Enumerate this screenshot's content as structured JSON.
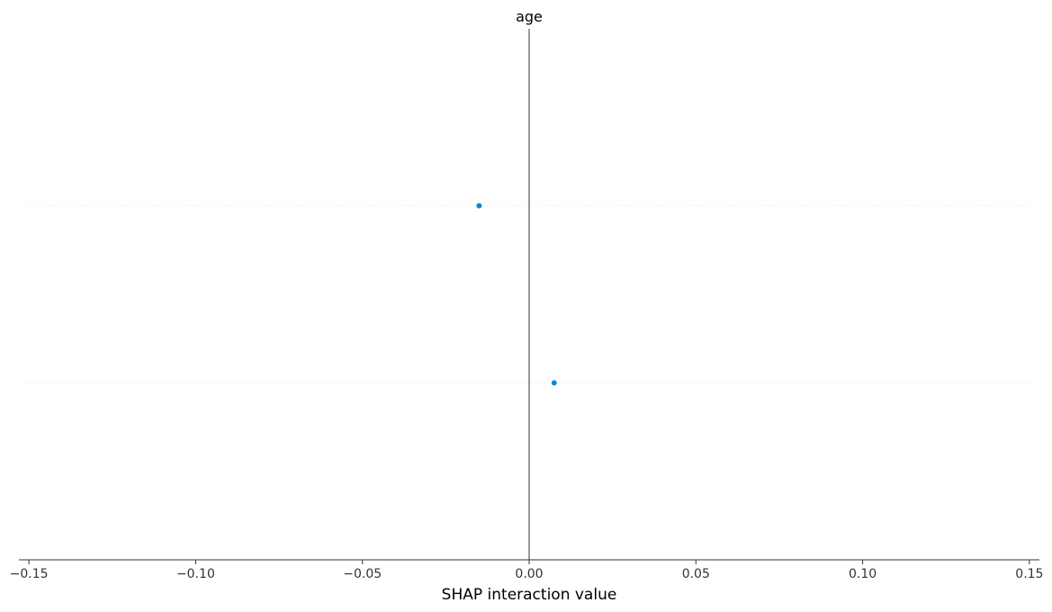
{
  "chart_data": {
    "type": "scatter",
    "title": "age",
    "xlabel": "SHAP interaction value",
    "ylabel": "",
    "xlim": [
      -0.153,
      0.153
    ],
    "xticks": [
      -0.15,
      -0.1,
      -0.05,
      0.0,
      0.05,
      0.1,
      0.15
    ],
    "xtick_labels": [
      "−0.15",
      "−0.10",
      "−0.05",
      "0.00",
      "0.05",
      "0.10",
      "0.15"
    ],
    "rows": 3,
    "grid": false,
    "legend": "none",
    "zero_line": 0,
    "points": [
      {
        "row": 1,
        "x": -0.015
      },
      {
        "row": 2,
        "x": 0.0075
      }
    ],
    "colors": {
      "point": "#008bd8",
      "zero_line": "#999999",
      "row_guide": "#e8e8e8",
      "axis": "#333333"
    }
  }
}
